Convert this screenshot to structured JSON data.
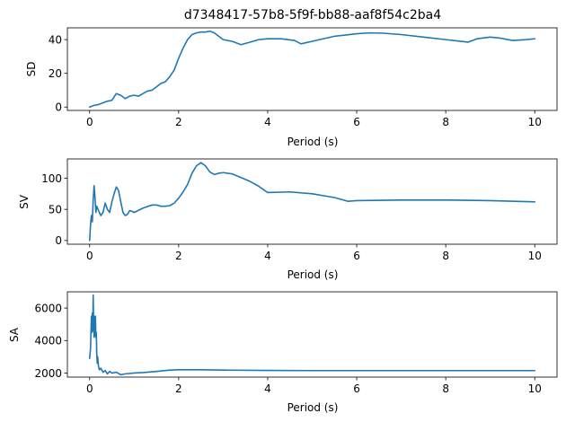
{
  "chart_data": [
    {
      "type": "line",
      "title": "d7348417-57b8-5f9f-bb88-aaf8f54c2ba4",
      "xlabel": "Period (s)",
      "ylabel": "SD",
      "xlim": [
        -0.5,
        10.5
      ],
      "ylim": [
        -2,
        47
      ],
      "xticks": [
        0,
        2,
        4,
        6,
        8,
        10
      ],
      "yticks": [
        0,
        20,
        40
      ],
      "grid": false,
      "color": "#1f77b4",
      "x": [
        0,
        0.1,
        0.2,
        0.3,
        0.4,
        0.5,
        0.6,
        0.7,
        0.8,
        0.9,
        1.0,
        1.1,
        1.2,
        1.3,
        1.4,
        1.5,
        1.6,
        1.7,
        1.8,
        1.9,
        2.0,
        2.1,
        2.2,
        2.3,
        2.4,
        2.5,
        2.6,
        2.7,
        2.8,
        2.9,
        3.0,
        3.2,
        3.4,
        3.6,
        3.8,
        4.0,
        4.3,
        4.6,
        4.75,
        5.0,
        5.5,
        6.0,
        6.3,
        6.6,
        7.0,
        7.5,
        8.0,
        8.5,
        8.7,
        9.0,
        9.2,
        9.5,
        9.8,
        10.0
      ],
      "values": [
        0,
        1,
        1.5,
        2.5,
        3.5,
        4,
        8,
        7,
        5,
        6.5,
        7,
        6.5,
        8,
        9.5,
        10,
        12,
        14,
        15,
        18,
        22,
        29,
        35,
        40,
        43,
        44,
        44.5,
        44.5,
        45,
        44,
        42,
        40,
        39,
        37,
        38.5,
        40,
        40.5,
        40.5,
        39.5,
        37.5,
        39,
        42,
        43.5,
        44,
        43.8,
        43,
        41.5,
        40,
        38.5,
        40.5,
        41.5,
        41,
        39.5,
        40,
        40.5
      ]
    },
    {
      "type": "line",
      "title": "",
      "xlabel": "Period (s)",
      "ylabel": "SV",
      "xlim": [
        -0.5,
        10.5
      ],
      "ylim": [
        -6,
        131
      ],
      "xticks": [
        0,
        2,
        4,
        6,
        8,
        10
      ],
      "yticks": [
        0,
        50,
        100
      ],
      "grid": false,
      "color": "#1f77b4",
      "x": [
        0,
        0.02,
        0.04,
        0.06,
        0.08,
        0.1,
        0.12,
        0.14,
        0.16,
        0.2,
        0.25,
        0.3,
        0.35,
        0.4,
        0.45,
        0.5,
        0.55,
        0.6,
        0.65,
        0.7,
        0.75,
        0.8,
        0.85,
        0.9,
        0.95,
        1.0,
        1.2,
        1.4,
        1.5,
        1.6,
        1.7,
        1.8,
        1.9,
        2.0,
        2.1,
        2.2,
        2.3,
        2.4,
        2.5,
        2.6,
        2.7,
        2.8,
        2.9,
        3.0,
        3.2,
        3.4,
        3.6,
        3.8,
        4.0,
        4.5,
        5.0,
        5.5,
        5.8,
        6.0,
        7.0,
        8.0,
        9.0,
        10.0
      ],
      "values": [
        0,
        25,
        40,
        30,
        65,
        88,
        70,
        45,
        55,
        48,
        40,
        45,
        60,
        50,
        45,
        62,
        75,
        86,
        80,
        62,
        45,
        40,
        42,
        48,
        47,
        45,
        52,
        57,
        57,
        55,
        55,
        56,
        60,
        68,
        78,
        90,
        108,
        120,
        125,
        120,
        110,
        106,
        108,
        109,
        107,
        101,
        95,
        87,
        77,
        78,
        75,
        69,
        63,
        64,
        65,
        65,
        64,
        62
      ]
    },
    {
      "type": "line",
      "title": "",
      "xlabel": "Period (s)",
      "ylabel": "SA",
      "xlim": [
        -0.5,
        10.5
      ],
      "ylim": [
        1750,
        7000
      ],
      "xticks": [
        0,
        2,
        4,
        6,
        8,
        10
      ],
      "yticks": [
        2000,
        4000,
        6000
      ],
      "grid": false,
      "color": "#1f77b4",
      "x": [
        0,
        0.02,
        0.04,
        0.05,
        0.06,
        0.07,
        0.08,
        0.09,
        0.1,
        0.11,
        0.12,
        0.13,
        0.14,
        0.15,
        0.16,
        0.17,
        0.18,
        0.2,
        0.22,
        0.25,
        0.3,
        0.35,
        0.4,
        0.45,
        0.5,
        0.6,
        0.7,
        0.8,
        1.0,
        1.2,
        1.5,
        1.8,
        2.0,
        2.5,
        3.0,
        4.0,
        5.0,
        6.0,
        7.0,
        8.0,
        9.0,
        10.0
      ],
      "values": [
        2900,
        3500,
        5500,
        4500,
        5700,
        4600,
        6800,
        5000,
        4200,
        5500,
        4300,
        5500,
        4200,
        4500,
        3200,
        2600,
        3000,
        2400,
        2200,
        2300,
        2050,
        2150,
        1950,
        2100,
        2000,
        2050,
        1900,
        1950,
        2000,
        2030,
        2100,
        2180,
        2200,
        2200,
        2180,
        2160,
        2150,
        2150,
        2150,
        2150,
        2150,
        2150
      ]
    }
  ]
}
